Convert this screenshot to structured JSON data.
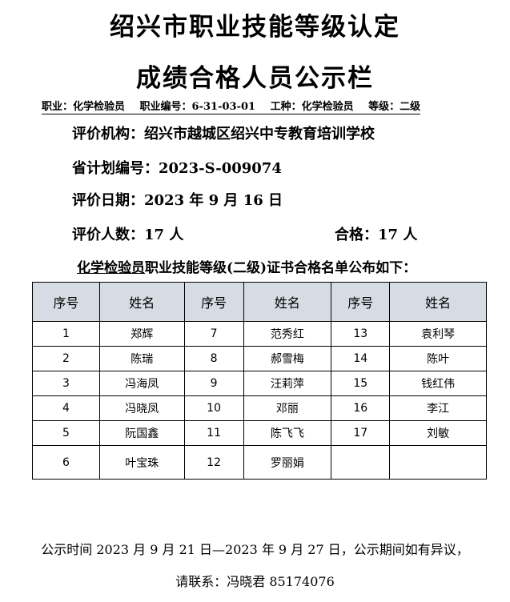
{
  "title_line1": "绍兴市职业技能等级认定",
  "title_line2": "成绩合格人员公示栏",
  "info": {
    "occupation": "职业：化学检验员",
    "code": "职业编号：6-31-03-01",
    "trade": "工种：化学检验员",
    "level": "等级：二级"
  },
  "org": "评价机构：绍兴市越城区绍兴中专教育培训学校",
  "plan_no": "省计划编号：2023-S-009074",
  "date": "评价日期：2023 年 9 月 16 日",
  "count": "评价人数：17 人",
  "passed": "合格：17 人",
  "intro_underlined": "化学检验员",
  "intro_rest": "职业技能等级(二级)证书合格名单公布如下：",
  "table": {
    "headers": [
      "序号",
      "姓名",
      "序号",
      "姓名",
      "序号",
      "姓名"
    ],
    "rows": [
      [
        "1",
        "郑辉",
        "7",
        "范秀红",
        "13",
        "袁利琴"
      ],
      [
        "2",
        "陈瑞",
        "8",
        "郝雪梅",
        "14",
        "陈叶"
      ],
      [
        "3",
        "冯海凤",
        "9",
        "汪莉萍",
        "15",
        "钱红伟"
      ],
      [
        "4",
        "冯晓凤",
        "10",
        "邓丽",
        "16",
        "李江"
      ],
      [
        "5",
        "阮国鑫",
        "11",
        "陈飞飞",
        "17",
        "刘敏"
      ],
      [
        "6",
        "叶宝珠",
        "12",
        "罗丽娟",
        "",
        ""
      ]
    ]
  },
  "footer_line1": "公示时间 2023 月 9 月 21 日—2023 年 9 月 27 日，公示期间如有异议，",
  "footer_line2": "请联系：冯晓君 85174076",
  "colors": {
    "header_bg": "#d6dce4"
  }
}
